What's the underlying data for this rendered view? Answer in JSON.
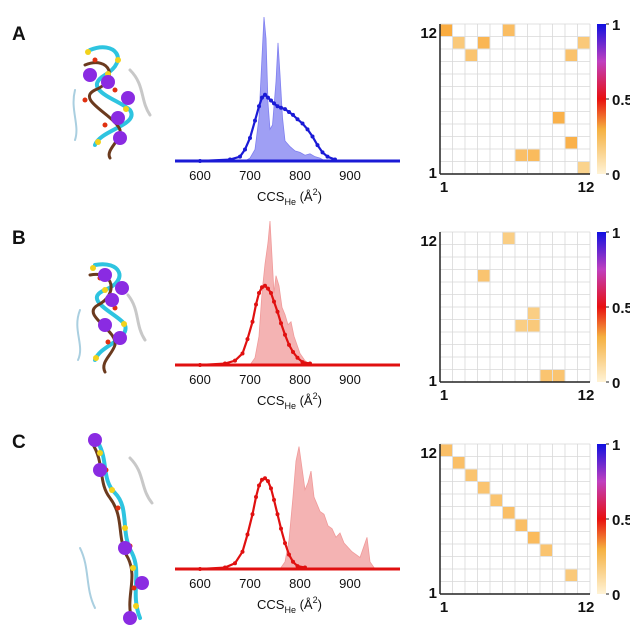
{
  "panels": [
    {
      "letter": "A",
      "chart_data": {
        "type": "area",
        "xlabel_main": "CCS",
        "xlabel_sub": "He",
        "xlabel_unit_pre": " (Å",
        "xlabel_unit_sup": "2",
        "xlabel_unit_post": ")",
        "xticks": [
          600,
          700,
          800,
          900
        ],
        "xlim": [
          550,
          1000
        ],
        "line_color": "#1a1ad6",
        "fill_color": "#7f7ff0",
        "dots": [
          [
            600,
            0
          ],
          [
            660,
            0.01
          ],
          [
            680,
            0.03
          ],
          [
            690,
            0.08
          ],
          [
            700,
            0.16
          ],
          [
            710,
            0.28
          ],
          [
            718,
            0.38
          ],
          [
            724,
            0.44
          ],
          [
            730,
            0.46
          ],
          [
            736,
            0.44
          ],
          [
            742,
            0.42
          ],
          [
            748,
            0.4
          ],
          [
            755,
            0.38
          ],
          [
            762,
            0.37
          ],
          [
            770,
            0.36
          ],
          [
            778,
            0.34
          ],
          [
            786,
            0.32
          ],
          [
            795,
            0.29
          ],
          [
            805,
            0.26
          ],
          [
            815,
            0.22
          ],
          [
            825,
            0.17
          ],
          [
            835,
            0.11
          ],
          [
            845,
            0.06
          ],
          [
            855,
            0.03
          ],
          [
            870,
            0.01
          ]
        ],
        "hist": [
          [
            690,
            0
          ],
          [
            700,
            0.02
          ],
          [
            710,
            0.08
          ],
          [
            718,
            0.3
          ],
          [
            724,
            0.72
          ],
          [
            728,
            1.0
          ],
          [
            732,
            0.85
          ],
          [
            736,
            0.4
          ],
          [
            740,
            0.22
          ],
          [
            745,
            0.25
          ],
          [
            752,
            0.55
          ],
          [
            756,
            0.82
          ],
          [
            760,
            0.6
          ],
          [
            765,
            0.3
          ],
          [
            770,
            0.14
          ],
          [
            780,
            0.1
          ],
          [
            790,
            0.07
          ],
          [
            800,
            0.06
          ],
          [
            810,
            0.04
          ],
          [
            820,
            0.05
          ],
          [
            830,
            0.03
          ],
          [
            840,
            0.02
          ],
          [
            850,
            0
          ]
        ]
      },
      "heatmap": {
        "type": "heatmap",
        "size": 12,
        "corner_top": "12",
        "corner_bottom": "1",
        "corner_left": "1",
        "corner_right": "12",
        "cbar_ticks": [
          "1",
          "0.5",
          "0"
        ],
        "cells": [
          [
            1,
            12,
            0.22
          ],
          [
            2,
            11,
            0.1
          ],
          [
            4,
            11,
            0.18
          ],
          [
            3,
            10,
            0.12
          ],
          [
            6,
            12,
            0.15
          ],
          [
            11,
            10,
            0.13
          ],
          [
            12,
            11,
            0.1
          ],
          [
            10,
            5,
            0.2
          ],
          [
            11,
            3,
            0.2
          ],
          [
            7,
            2,
            0.14
          ],
          [
            8,
            2,
            0.16
          ],
          [
            12,
            1,
            0.06
          ]
        ]
      }
    },
    {
      "letter": "B",
      "chart_data": {
        "type": "area",
        "xlabel_main": "CCS",
        "xlabel_sub": "He",
        "xlabel_unit_pre": " (Å",
        "xlabel_unit_sup": "2",
        "xlabel_unit_post": ")",
        "xticks": [
          600,
          700,
          800,
          900
        ],
        "xlim": [
          550,
          1000
        ],
        "line_color": "#e01010",
        "fill_color": "#f09a9a",
        "dots": [
          [
            600,
            0
          ],
          [
            650,
            0.01
          ],
          [
            670,
            0.03
          ],
          [
            685,
            0.08
          ],
          [
            695,
            0.18
          ],
          [
            705,
            0.3
          ],
          [
            712,
            0.42
          ],
          [
            718,
            0.5
          ],
          [
            724,
            0.54
          ],
          [
            730,
            0.55
          ],
          [
            736,
            0.53
          ],
          [
            742,
            0.5
          ],
          [
            748,
            0.44
          ],
          [
            755,
            0.37
          ],
          [
            762,
            0.29
          ],
          [
            770,
            0.21
          ],
          [
            778,
            0.14
          ],
          [
            786,
            0.09
          ],
          [
            795,
            0.05
          ],
          [
            805,
            0.02
          ],
          [
            820,
            0.01
          ]
        ],
        "hist": [
          [
            700,
            0
          ],
          [
            710,
            0.05
          ],
          [
            718,
            0.2
          ],
          [
            724,
            0.5
          ],
          [
            730,
            0.7
          ],
          [
            736,
            0.85
          ],
          [
            740,
            1.0
          ],
          [
            744,
            0.75
          ],
          [
            748,
            0.5
          ],
          [
            752,
            0.62
          ],
          [
            758,
            0.55
          ],
          [
            764,
            0.4
          ],
          [
            770,
            0.35
          ],
          [
            776,
            0.28
          ],
          [
            782,
            0.3
          ],
          [
            788,
            0.2
          ],
          [
            794,
            0.14
          ],
          [
            800,
            0.08
          ],
          [
            810,
            0.03
          ],
          [
            820,
            0
          ]
        ]
      },
      "heatmap": {
        "type": "heatmap",
        "size": 12,
        "corner_top": "12",
        "corner_bottom": "1",
        "corner_left": "1",
        "corner_right": "12",
        "cbar_ticks": [
          "1",
          "0.5",
          "0"
        ],
        "cells": [
          [
            6,
            12,
            0.08
          ],
          [
            4,
            9,
            0.12
          ],
          [
            8,
            6,
            0.08
          ],
          [
            7,
            5,
            0.08
          ],
          [
            8,
            5,
            0.1
          ],
          [
            9,
            1,
            0.12
          ],
          [
            10,
            1,
            0.12
          ]
        ]
      }
    },
    {
      "letter": "C",
      "chart_data": {
        "type": "area",
        "xlabel_main": "CCS",
        "xlabel_sub": "He",
        "xlabel_unit_pre": " (Å",
        "xlabel_unit_sup": "2",
        "xlabel_unit_post": ")",
        "xticks": [
          600,
          700,
          800,
          900
        ],
        "xlim": [
          550,
          1000
        ],
        "line_color": "#e01010",
        "fill_color": "#f09a9a",
        "dots": [
          [
            600,
            0
          ],
          [
            650,
            0.01
          ],
          [
            670,
            0.04
          ],
          [
            685,
            0.12
          ],
          [
            695,
            0.24
          ],
          [
            705,
            0.38
          ],
          [
            712,
            0.5
          ],
          [
            718,
            0.58
          ],
          [
            724,
            0.62
          ],
          [
            730,
            0.63
          ],
          [
            736,
            0.61
          ],
          [
            742,
            0.56
          ],
          [
            748,
            0.48
          ],
          [
            755,
            0.38
          ],
          [
            762,
            0.28
          ],
          [
            770,
            0.18
          ],
          [
            778,
            0.1
          ],
          [
            786,
            0.05
          ],
          [
            795,
            0.02
          ],
          [
            810,
            0.01
          ]
        ],
        "hist": [
          [
            760,
            0
          ],
          [
            770,
            0.05
          ],
          [
            778,
            0.2
          ],
          [
            786,
            0.5
          ],
          [
            792,
            0.75
          ],
          [
            798,
            0.85
          ],
          [
            804,
            0.7
          ],
          [
            810,
            0.55
          ],
          [
            816,
            0.6
          ],
          [
            822,
            0.68
          ],
          [
            828,
            0.5
          ],
          [
            834,
            0.45
          ],
          [
            840,
            0.4
          ],
          [
            848,
            0.38
          ],
          [
            856,
            0.3
          ],
          [
            864,
            0.28
          ],
          [
            872,
            0.22
          ],
          [
            880,
            0.25
          ],
          [
            888,
            0.18
          ],
          [
            896,
            0.15
          ],
          [
            904,
            0.12
          ],
          [
            912,
            0.1
          ],
          [
            920,
            0.08
          ],
          [
            928,
            0.16
          ],
          [
            934,
            0.22
          ],
          [
            940,
            0.05
          ],
          [
            950,
            0
          ]
        ]
      },
      "heatmap": {
        "type": "heatmap",
        "size": 12,
        "corner_top": "12",
        "corner_bottom": "1",
        "corner_left": "1",
        "corner_right": "12",
        "cbar_ticks": [
          "1",
          "0.5",
          "0"
        ],
        "cells": [
          [
            1,
            12,
            0.14
          ],
          [
            2,
            11,
            0.14
          ],
          [
            3,
            10,
            0.12
          ],
          [
            4,
            9,
            0.12
          ],
          [
            5,
            8,
            0.12
          ],
          [
            6,
            7,
            0.14
          ],
          [
            7,
            6,
            0.14
          ],
          [
            8,
            5,
            0.16
          ],
          [
            9,
            4,
            0.12
          ],
          [
            11,
            2,
            0.1
          ]
        ]
      }
    }
  ],
  "colors": {
    "axis": "#222222",
    "grid": "#d8d8d8"
  }
}
